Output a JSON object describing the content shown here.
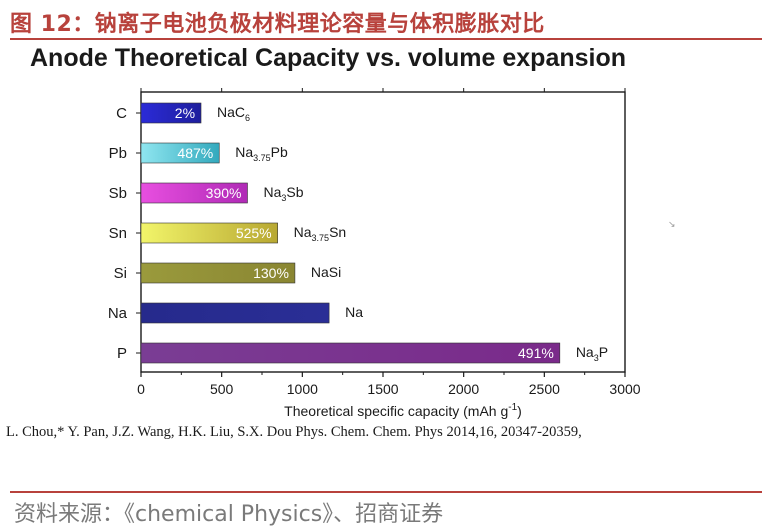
{
  "figure_title": "图 12：钠离子电池负极材料理论容量与体积膨胀对比",
  "citation": "L. Chou,* Y. Pan, J.Z. Wang, H.K. Liu, S.X. Dou Phys. Chem. Chem. Phys 2014,16, 20347-20359,",
  "source": "资料来源：《chemical Physics》、招商证券",
  "chart_data": {
    "type": "bar",
    "orientation": "horizontal",
    "title": "Anode Theoretical Capacity vs. volume expansion",
    "xlabel": "Theoretical specific capacity (mAh g",
    "xlabel_sup": "-1",
    "xlabel_end": ")",
    "xlim": [
      0,
      3000
    ],
    "xticks": [
      0,
      500,
      1000,
      1500,
      2000,
      2500,
      3000
    ],
    "grid": false,
    "categories": [
      "C",
      "Pb",
      "Sb",
      "Sn",
      "Si",
      "Na",
      "P"
    ],
    "values": [
      372,
      485,
      660,
      847,
      954,
      1166,
      2596
    ],
    "volume_expansion_labels": [
      "2%",
      "487%",
      "390%",
      "525%",
      "130%",
      "",
      "491%"
    ],
    "phases": [
      {
        "base": "NaC",
        "sub": "6",
        "rest": ""
      },
      {
        "base": "Na",
        "sub": "3.75",
        "rest": "Pb"
      },
      {
        "base": "Na",
        "sub": "3",
        "rest": "Sb"
      },
      {
        "base": "Na",
        "sub": "3.75",
        "rest": "Sn"
      },
      {
        "base": "NaSi",
        "sub": "",
        "rest": ""
      },
      {
        "base": "Na",
        "sub": "",
        "rest": ""
      },
      {
        "base": "Na",
        "sub": "3",
        "rest": "P"
      }
    ],
    "bar_colors": [
      [
        "#2b2bd8",
        "#1e1e9c"
      ],
      [
        "#8fe6f0",
        "#33a9bd"
      ],
      [
        "#e84fe0",
        "#b02ab6"
      ],
      [
        "#f2f56a",
        "#b8a832"
      ],
      [
        "#9a9a3c",
        "#8a8632"
      ],
      [
        "#262a8c",
        "#2a2e96"
      ],
      [
        "#7a3d94",
        "#7a2a8a"
      ]
    ]
  }
}
